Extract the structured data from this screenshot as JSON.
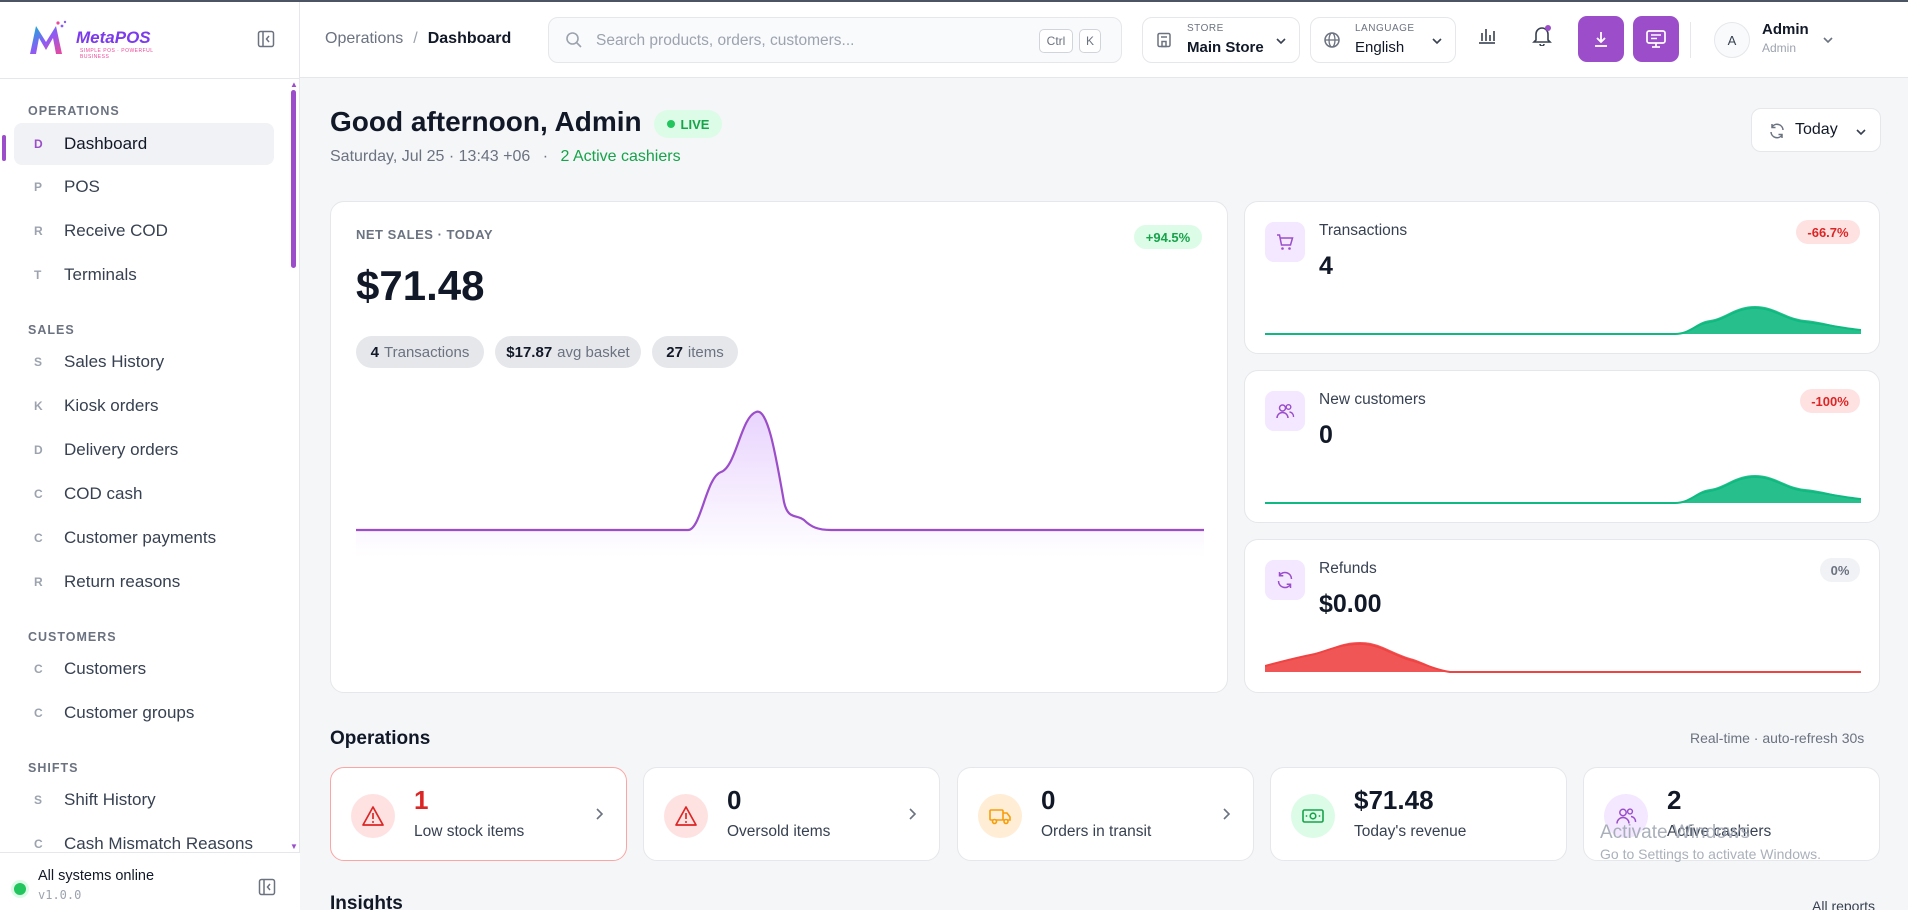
{
  "app": {
    "logo_main": "MetaPOS",
    "logo_sub": "SIMPLE POS · POWERFUL BUSINESS"
  },
  "sidebar": {
    "sections": [
      {
        "title": "OPERATIONS",
        "items": [
          {
            "letter": "D",
            "label": "Dashboard",
            "active": true
          },
          {
            "letter": "P",
            "label": "POS"
          },
          {
            "letter": "R",
            "label": "Receive COD"
          },
          {
            "letter": "T",
            "label": "Terminals"
          }
        ]
      },
      {
        "title": "SALES",
        "items": [
          {
            "letter": "S",
            "label": "Sales History"
          },
          {
            "letter": "K",
            "label": "Kiosk orders"
          },
          {
            "letter": "D",
            "label": "Delivery orders"
          },
          {
            "letter": "C",
            "label": "COD cash"
          },
          {
            "letter": "C",
            "label": "Customer payments"
          },
          {
            "letter": "R",
            "label": "Return reasons"
          }
        ]
      },
      {
        "title": "CUSTOMERS",
        "items": [
          {
            "letter": "C",
            "label": "Customers"
          },
          {
            "letter": "C",
            "label": "Customer groups"
          }
        ]
      },
      {
        "title": "SHIFTS",
        "items": [
          {
            "letter": "S",
            "label": "Shift History"
          },
          {
            "letter": "C",
            "label": "Cash Mismatch Reasons"
          }
        ]
      }
    ],
    "footer": {
      "status": "All systems online",
      "version": "v1.0.0"
    }
  },
  "header": {
    "breadcrumb": {
      "parent": "Operations",
      "sep": "/",
      "current": "Dashboard"
    },
    "search": {
      "placeholder": "Search products, orders, customers...",
      "key1": "Ctrl",
      "key2": "K"
    },
    "store": {
      "caption": "STORE",
      "value": "Main Store"
    },
    "language": {
      "caption": "LANGUAGE",
      "value": "English"
    },
    "user": {
      "initial": "A",
      "name": "Admin",
      "role": "Admin"
    }
  },
  "main": {
    "greeting": "Good afternoon, Admin",
    "live_badge": "LIVE",
    "date_line": "Saturday, Jul 25 · 13:43 +06",
    "dot": "·",
    "active_cashiers": "2 Active cashiers",
    "range_button": "Today",
    "net_sales": {
      "caption": "NET SALES · TODAY",
      "value": "$71.48",
      "change": "+94.5%",
      "chips": [
        {
          "strong": "4",
          "text": "Transactions"
        },
        {
          "strong": "$17.87",
          "text": "avg basket"
        },
        {
          "strong": "27",
          "text": "items"
        }
      ]
    },
    "mini_cards": [
      {
        "label": "Transactions",
        "value": "4",
        "change": "-66.7%",
        "tone": "red"
      },
      {
        "label": "New customers",
        "value": "0",
        "change": "-100%",
        "tone": "red"
      },
      {
        "label": "Refunds",
        "value": "$0.00",
        "change": "0%",
        "tone": "grey"
      }
    ],
    "operations": {
      "title": "Operations",
      "note": "Real-time · auto-refresh 30s",
      "cards": [
        {
          "value": "1",
          "label": "Low stock items"
        },
        {
          "value": "0",
          "label": "Oversold items"
        },
        {
          "value": "0",
          "label": "Orders in transit"
        },
        {
          "value": "$71.48",
          "label": "Today's revenue"
        },
        {
          "value": "2",
          "label": "Active cashiers"
        }
      ]
    },
    "insights": {
      "title": "Insights",
      "link": "All reports"
    },
    "watermark": {
      "line1": "Activate Windows",
      "line2": "Go to Settings to activate Windows."
    }
  },
  "colors": {
    "accent": "#9b4dca",
    "positive": "#16a34a",
    "negative": "#dc2626",
    "spark_green": "#10b981",
    "spark_red": "#ef4444"
  }
}
